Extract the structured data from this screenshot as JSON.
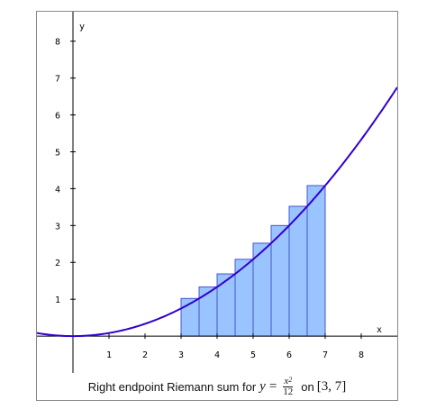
{
  "chart_data": {
    "type": "area",
    "function": "y = x^2/12",
    "method": "right endpoint",
    "interval": [
      3,
      7
    ],
    "n": 8,
    "bars": [
      {
        "x0": 3.0,
        "x1": 3.5,
        "height": 1.021
      },
      {
        "x0": 3.5,
        "x1": 4.0,
        "height": 1.333
      },
      {
        "x0": 4.0,
        "x1": 4.5,
        "height": 1.688
      },
      {
        "x0": 4.5,
        "x1": 5.0,
        "height": 2.083
      },
      {
        "x0": 5.0,
        "x1": 5.5,
        "height": 2.521
      },
      {
        "x0": 5.5,
        "x1": 6.0,
        "height": 3.0
      },
      {
        "x0": 6.0,
        "x1": 6.5,
        "height": 3.521
      },
      {
        "x0": 6.5,
        "x1": 7.0,
        "height": 4.083
      }
    ],
    "xlim": [
      -1,
      9
    ],
    "ylim": [
      -1,
      8.8
    ],
    "x_ticks": [
      "1",
      "2",
      "3",
      "4",
      "5",
      "6",
      "7",
      "8"
    ],
    "y_ticks": [
      "1",
      "2",
      "3",
      "4",
      "5",
      "6",
      "7",
      "8"
    ],
    "xlabel": "x",
    "ylabel": "y",
    "curve_color": "#3300cc",
    "bar_fill": "#99c4ff",
    "bar_stroke": "#4455cc",
    "grid": false
  },
  "caption": {
    "prefix": "Right endpoint Riemann sum for",
    "y_var": "y",
    "equals": "=",
    "numerator": "x",
    "exponent": "2",
    "denominator": "12",
    "on": "on",
    "interval_text": "[3, 7]"
  }
}
